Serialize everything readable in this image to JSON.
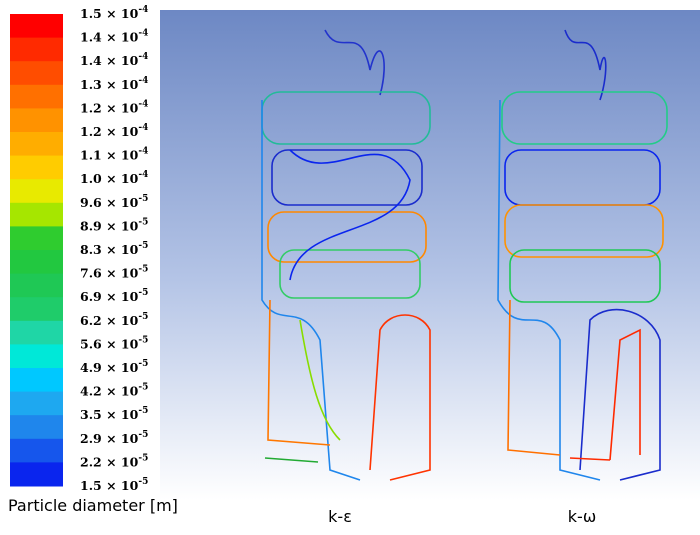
{
  "legend": {
    "title": "Particle diameter [m]",
    "colors": [
      "#ff0000",
      "#ff2a00",
      "#ff4d00",
      "#ff7000",
      "#ff9200",
      "#ffad00",
      "#ffcc00",
      "#e8ea00",
      "#a6e600",
      "#2fcc2f",
      "#22c840",
      "#1fc855",
      "#1fcc6a",
      "#1fd6a6",
      "#00e8d8",
      "#00c8ff",
      "#1ea8f0",
      "#1f86ec",
      "#1656ec",
      "#0a25ee"
    ],
    "labels": [
      {
        "base": "1.5 × 10",
        "exp": "-4"
      },
      {
        "base": "1.4 × 10",
        "exp": "-4"
      },
      {
        "base": "1.4 × 10",
        "exp": "-4"
      },
      {
        "base": "1.3 × 10",
        "exp": "-4"
      },
      {
        "base": "1.2 × 10",
        "exp": "-4"
      },
      {
        "base": "1.2 × 10",
        "exp": "-4"
      },
      {
        "base": "1.1 × 10",
        "exp": "-4"
      },
      {
        "base": "1.0 × 10",
        "exp": "-4"
      },
      {
        "base": "9.6 × 10",
        "exp": "-5"
      },
      {
        "base": "8.9 × 10",
        "exp": "-5"
      },
      {
        "base": "8.3 × 10",
        "exp": "-5"
      },
      {
        "base": "7.6 × 10",
        "exp": "-5"
      },
      {
        "base": "6.9 × 10",
        "exp": "-5"
      },
      {
        "base": "6.2 × 10",
        "exp": "-5"
      },
      {
        "base": "5.6 × 10",
        "exp": "-5"
      },
      {
        "base": "4.9 × 10",
        "exp": "-5"
      },
      {
        "base": "4.2 × 10",
        "exp": "-5"
      },
      {
        "base": "3.5 × 10",
        "exp": "-5"
      },
      {
        "base": "2.9 × 10",
        "exp": "-5"
      },
      {
        "base": "2.2 × 10",
        "exp": "-5"
      },
      {
        "base": "1.5 × 10",
        "exp": "-5"
      }
    ]
  },
  "panels": [
    {
      "label": "k-ε"
    },
    {
      "label": "k-ω"
    }
  ]
}
